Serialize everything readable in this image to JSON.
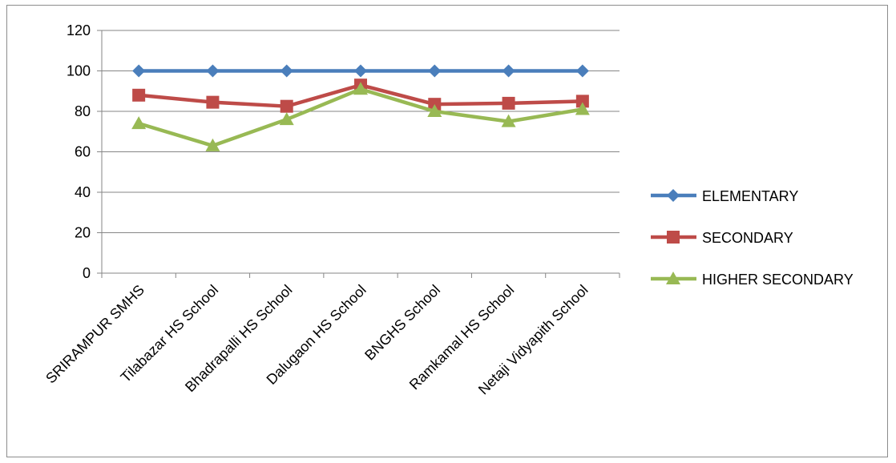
{
  "chart_data": {
    "type": "line",
    "title": "",
    "xlabel": "",
    "ylabel": "",
    "categories": [
      "SRIRAMPUR SMHS",
      "Tilabazar HS School",
      "Bhadrapalli HS School",
      "Dalugaon HS School",
      "BNGHS School",
      "Ramkamal HS School",
      "Netaji Vidyapith School"
    ],
    "ylim": [
      0,
      120
    ],
    "yticks": [
      "0",
      "20",
      "40",
      "60",
      "80",
      "100",
      "120"
    ],
    "grid": true,
    "legend_position": "right",
    "series": [
      {
        "name": "ELEMENTARY",
        "color": "#4a7ebb",
        "marker": "diamond",
        "values": [
          100,
          100,
          100,
          100,
          100,
          100,
          100
        ]
      },
      {
        "name": "SECONDARY",
        "color": "#be4b48",
        "marker": "square",
        "values": [
          88,
          84.5,
          82.5,
          93,
          83.5,
          84,
          85
        ]
      },
      {
        "name": "HIGHER SECONDARY",
        "color": "#98b954",
        "marker": "triangle",
        "values": [
          74,
          63,
          76,
          91,
          80,
          75,
          81
        ]
      }
    ]
  }
}
